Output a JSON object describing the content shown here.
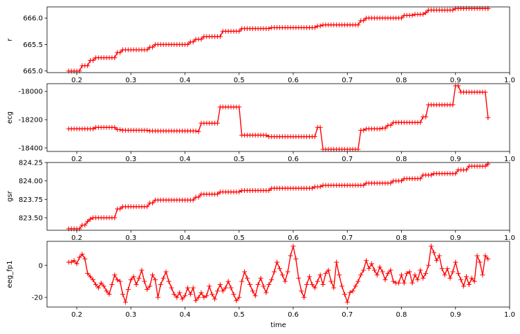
{
  "colors": {
    "series": "#ff0000",
    "axis": "#000000",
    "background": "#ffffff"
  },
  "chart_data": [
    {
      "type": "line",
      "marker": "+",
      "ylabel": "r",
      "xlabel": "",
      "xlim": [
        0.145,
        1.0
      ],
      "ylim": [
        664.97,
        666.21
      ],
      "xticks": [
        "0.2",
        "0.3",
        "0.4",
        "0.5",
        "0.6",
        "0.7",
        "0.8",
        "0.9",
        "1.0"
      ],
      "yticks": [
        "665.0",
        "665.5",
        "666.0"
      ],
      "ytick_values": [
        665.0,
        665.5,
        666.0
      ],
      "steps": [
        [
          0.185,
          665.0
        ],
        [
          0.21,
          665.1
        ],
        [
          0.225,
          665.2
        ],
        [
          0.235,
          665.25
        ],
        [
          0.275,
          665.35
        ],
        [
          0.285,
          665.4
        ],
        [
          0.335,
          665.45
        ],
        [
          0.345,
          665.5
        ],
        [
          0.41,
          665.55
        ],
        [
          0.42,
          665.6
        ],
        [
          0.435,
          665.65
        ],
        [
          0.47,
          665.75
        ],
        [
          0.505,
          665.8
        ],
        [
          0.56,
          665.82
        ],
        [
          0.645,
          665.85
        ],
        [
          0.655,
          665.87
        ],
        [
          0.725,
          665.95
        ],
        [
          0.735,
          666.0
        ],
        [
          0.805,
          666.05
        ],
        [
          0.825,
          666.07
        ],
        [
          0.845,
          666.1
        ],
        [
          0.85,
          666.15
        ],
        [
          0.9,
          666.18
        ],
        [
          0.96,
          666.18
        ]
      ]
    },
    {
      "type": "line",
      "marker": "+",
      "ylabel": "ecg",
      "xlabel": "",
      "xlim": [
        0.145,
        1.0
      ],
      "ylim": [
        -18425,
        -17945
      ],
      "xticks": [
        "0.2",
        "0.3",
        "0.4",
        "0.5",
        "0.6",
        "0.7",
        "0.8",
        "0.9",
        "1.0"
      ],
      "yticks": [
        "-18000",
        "-18200",
        "-18400"
      ],
      "ytick_values": [
        -18000,
        -18200,
        -18400
      ],
      "steps": [
        [
          0.185,
          -18265
        ],
        [
          0.235,
          -18255
        ],
        [
          0.275,
          -18270
        ],
        [
          0.285,
          -18275
        ],
        [
          0.335,
          -18280
        ],
        [
          0.425,
          -18285
        ],
        [
          0.43,
          -18225
        ],
        [
          0.465,
          -18110
        ],
        [
          0.505,
          -18310
        ],
        [
          0.555,
          -18320
        ],
        [
          0.645,
          -18255
        ],
        [
          0.655,
          -18410
        ],
        [
          0.72,
          -18410
        ],
        [
          0.725,
          -18275
        ],
        [
          0.735,
          -18265
        ],
        [
          0.765,
          -18260
        ],
        [
          0.775,
          -18240
        ],
        [
          0.785,
          -18220
        ],
        [
          0.84,
          -18180
        ],
        [
          0.85,
          -18095
        ],
        [
          0.9,
          -17960
        ],
        [
          0.91,
          -18005
        ],
        [
          0.955,
          -18005
        ],
        [
          0.96,
          -18185
        ]
      ]
    },
    {
      "type": "line",
      "marker": "+",
      "ylabel": "gsr",
      "xlabel": "",
      "xlim": [
        0.145,
        1.0
      ],
      "ylim": [
        823.33,
        824.25
      ],
      "xticks": [
        "0.2",
        "0.3",
        "0.4",
        "0.5",
        "0.6",
        "0.7",
        "0.8",
        "0.9",
        "1.0"
      ],
      "yticks": [
        "823.50",
        "823.75",
        "824.00",
        "824.25"
      ],
      "ytick_values": [
        823.5,
        823.75,
        824.0,
        824.25
      ],
      "steps": [
        [
          0.185,
          823.35
        ],
        [
          0.21,
          823.4
        ],
        [
          0.22,
          823.45
        ],
        [
          0.225,
          823.48
        ],
        [
          0.23,
          823.5
        ],
        [
          0.275,
          823.62
        ],
        [
          0.285,
          823.65
        ],
        [
          0.335,
          823.7
        ],
        [
          0.345,
          823.74
        ],
        [
          0.42,
          823.78
        ],
        [
          0.43,
          823.82
        ],
        [
          0.465,
          823.85
        ],
        [
          0.505,
          823.87
        ],
        [
          0.56,
          823.9
        ],
        [
          0.64,
          823.92
        ],
        [
          0.655,
          823.94
        ],
        [
          0.735,
          823.97
        ],
        [
          0.785,
          824.0
        ],
        [
          0.805,
          824.03
        ],
        [
          0.84,
          824.08
        ],
        [
          0.86,
          824.1
        ],
        [
          0.905,
          824.15
        ],
        [
          0.925,
          824.2
        ],
        [
          0.96,
          824.23
        ]
      ]
    },
    {
      "type": "line",
      "marker": "+",
      "ylabel": "eeg_fp1",
      "xlabel": "time",
      "xlim": [
        0.145,
        1.0
      ],
      "ylim": [
        -26,
        15
      ],
      "xticks": [
        "0.2",
        "0.3",
        "0.4",
        "0.5",
        "0.6",
        "0.7",
        "0.8",
        "0.9",
        "1.0"
      ],
      "yticks": [
        "0",
        "-20"
      ],
      "ytick_values": [
        0,
        -20
      ],
      "points": [
        [
          0.185,
          2
        ],
        [
          0.19,
          2
        ],
        [
          0.195,
          3
        ],
        [
          0.2,
          1
        ],
        [
          0.205,
          5
        ],
        [
          0.21,
          7
        ],
        [
          0.215,
          4
        ],
        [
          0.22,
          -5
        ],
        [
          0.225,
          -7
        ],
        [
          0.23,
          -9
        ],
        [
          0.235,
          -12
        ],
        [
          0.24,
          -14
        ],
        [
          0.245,
          -11
        ],
        [
          0.25,
          -13
        ],
        [
          0.255,
          -16
        ],
        [
          0.26,
          -18
        ],
        [
          0.265,
          -12
        ],
        [
          0.27,
          -6
        ],
        [
          0.275,
          -9
        ],
        [
          0.28,
          -10
        ],
        [
          0.285,
          -18
        ],
        [
          0.29,
          -23
        ],
        [
          0.295,
          -15
        ],
        [
          0.3,
          -9
        ],
        [
          0.305,
          -7
        ],
        [
          0.31,
          -12
        ],
        [
          0.315,
          -8
        ],
        [
          0.32,
          -3
        ],
        [
          0.325,
          -10
        ],
        [
          0.33,
          -15
        ],
        [
          0.335,
          -13
        ],
        [
          0.34,
          -6
        ],
        [
          0.345,
          -9
        ],
        [
          0.35,
          -20
        ],
        [
          0.355,
          -12
        ],
        [
          0.36,
          -8
        ],
        [
          0.365,
          -4
        ],
        [
          0.37,
          -10
        ],
        [
          0.375,
          -14
        ],
        [
          0.38,
          -18
        ],
        [
          0.385,
          -20
        ],
        [
          0.39,
          -17
        ],
        [
          0.395,
          -21
        ],
        [
          0.4,
          -19
        ],
        [
          0.405,
          -14
        ],
        [
          0.41,
          -18
        ],
        [
          0.415,
          -14
        ],
        [
          0.42,
          -22
        ],
        [
          0.425,
          -20
        ],
        [
          0.43,
          -17
        ],
        [
          0.435,
          -20
        ],
        [
          0.44,
          -19
        ],
        [
          0.445,
          -13
        ],
        [
          0.45,
          -18
        ],
        [
          0.455,
          -21
        ],
        [
          0.46,
          -16
        ],
        [
          0.465,
          -12
        ],
        [
          0.47,
          -16
        ],
        [
          0.475,
          -14
        ],
        [
          0.48,
          -10
        ],
        [
          0.485,
          -14
        ],
        [
          0.49,
          -18
        ],
        [
          0.495,
          -22
        ],
        [
          0.5,
          -20
        ],
        [
          0.505,
          -10
        ],
        [
          0.51,
          -4
        ],
        [
          0.515,
          -8
        ],
        [
          0.52,
          -12
        ],
        [
          0.525,
          -16
        ],
        [
          0.53,
          -19
        ],
        [
          0.535,
          -12
        ],
        [
          0.54,
          -8
        ],
        [
          0.545,
          -13
        ],
        [
          0.55,
          -17
        ],
        [
          0.555,
          -12
        ],
        [
          0.56,
          -9
        ],
        [
          0.565,
          -4
        ],
        [
          0.57,
          2
        ],
        [
          0.575,
          -2
        ],
        [
          0.58,
          -6
        ],
        [
          0.585,
          -10
        ],
        [
          0.59,
          -4
        ],
        [
          0.595,
          6
        ],
        [
          0.6,
          12
        ],
        [
          0.605,
          4
        ],
        [
          0.61,
          -8
        ],
        [
          0.615,
          -16
        ],
        [
          0.62,
          -20
        ],
        [
          0.625,
          -12
        ],
        [
          0.63,
          -7
        ],
        [
          0.635,
          -12
        ],
        [
          0.64,
          -14
        ],
        [
          0.645,
          -10
        ],
        [
          0.65,
          -6
        ],
        [
          0.655,
          -12
        ],
        [
          0.66,
          -5
        ],
        [
          0.665,
          -3
        ],
        [
          0.67,
          -10
        ],
        [
          0.675,
          -14
        ],
        [
          0.68,
          2
        ],
        [
          0.685,
          -6
        ],
        [
          0.69,
          -13
        ],
        [
          0.695,
          -18
        ],
        [
          0.7,
          -23
        ],
        [
          0.705,
          -17
        ],
        [
          0.71,
          -16
        ],
        [
          0.715,
          -13
        ],
        [
          0.72,
          -10
        ],
        [
          0.725,
          -6
        ],
        [
          0.73,
          -3
        ],
        [
          0.735,
          3
        ],
        [
          0.74,
          -2
        ],
        [
          0.745,
          1
        ],
        [
          0.75,
          -3
        ],
        [
          0.755,
          -6
        ],
        [
          0.76,
          -1
        ],
        [
          0.765,
          -4
        ],
        [
          0.77,
          -9
        ],
        [
          0.775,
          -5
        ],
        [
          0.78,
          -3
        ],
        [
          0.785,
          -10
        ],
        [
          0.79,
          -11
        ],
        [
          0.795,
          -11
        ],
        [
          0.8,
          -6
        ],
        [
          0.805,
          -11
        ],
        [
          0.81,
          -5
        ],
        [
          0.815,
          -4
        ],
        [
          0.82,
          -11
        ],
        [
          0.825,
          -6
        ],
        [
          0.83,
          -9
        ],
        [
          0.835,
          -3
        ],
        [
          0.84,
          -8
        ],
        [
          0.845,
          -5
        ],
        [
          0.85,
          0
        ],
        [
          0.855,
          12
        ],
        [
          0.86,
          8
        ],
        [
          0.865,
          3
        ],
        [
          0.87,
          6
        ],
        [
          0.875,
          -2
        ],
        [
          0.88,
          -6
        ],
        [
          0.885,
          -2
        ],
        [
          0.89,
          -8
        ],
        [
          0.895,
          -4
        ],
        [
          0.9,
          2
        ],
        [
          0.905,
          -5
        ],
        [
          0.91,
          -9
        ],
        [
          0.915,
          -13
        ],
        [
          0.92,
          -7
        ],
        [
          0.925,
          -12
        ],
        [
          0.93,
          -8
        ],
        [
          0.935,
          -10
        ],
        [
          0.94,
          6
        ],
        [
          0.945,
          2
        ],
        [
          0.95,
          -6
        ],
        [
          0.955,
          6
        ],
        [
          0.96,
          4
        ]
      ]
    }
  ]
}
